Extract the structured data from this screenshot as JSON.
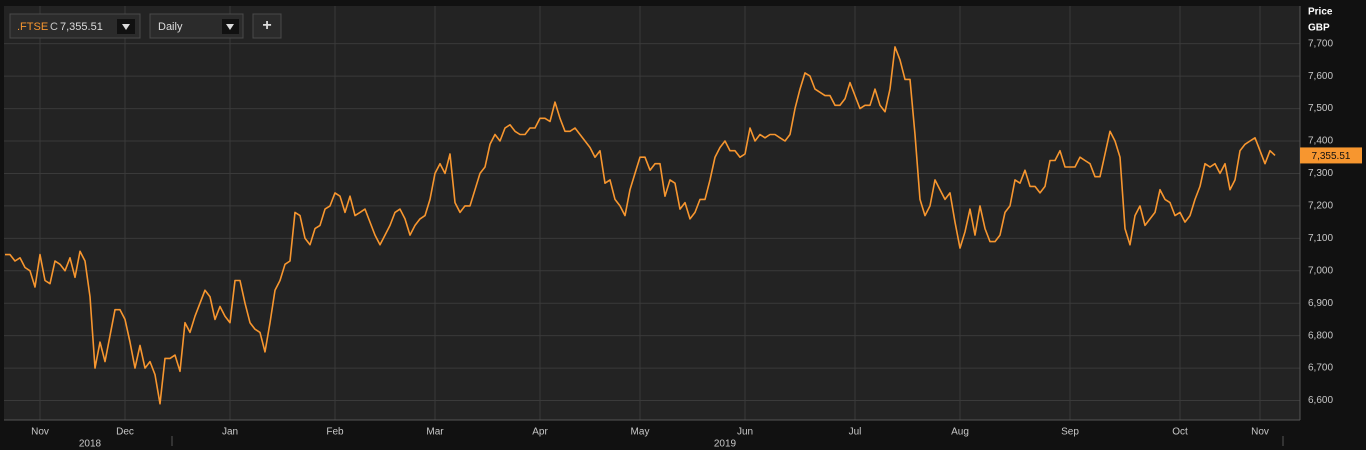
{
  "toolbar": {
    "instrument": ".FTSE",
    "close_prefix": "C",
    "close_label": "7,355.51",
    "interval": "Daily",
    "add_button": "+"
  },
  "chart_data": {
    "type": "line",
    "y_axis_title": [
      "Price",
      "GBP"
    ],
    "categories": [
      null,
      null,
      null,
      null,
      null,
      null,
      null,
      "Nov",
      null,
      null,
      null,
      null,
      null,
      null,
      null,
      null,
      null,
      null,
      null,
      null,
      null,
      null,
      null,
      null,
      "Dec",
      null,
      null,
      null,
      null,
      null,
      null,
      null,
      null,
      null,
      null,
      null,
      null,
      null,
      null,
      null,
      null,
      null,
      null,
      null,
      null,
      "Jan",
      null,
      null,
      null,
      null,
      null,
      null,
      null,
      null,
      null,
      null,
      null,
      null,
      null,
      null,
      null,
      null,
      null,
      null,
      null,
      null,
      "Feb",
      null,
      null,
      null,
      null,
      null,
      null,
      null,
      null,
      null,
      null,
      null,
      null,
      null,
      null,
      null,
      null,
      null,
      null,
      null,
      "Mar",
      null,
      null,
      null,
      null,
      null,
      null,
      null,
      null,
      null,
      null,
      null,
      null,
      null,
      null,
      null,
      null,
      null,
      null,
      null,
      null,
      "Apr",
      null,
      null,
      null,
      null,
      null,
      null,
      null,
      null,
      null,
      null,
      null,
      null,
      null,
      null,
      null,
      null,
      null,
      null,
      null,
      "May",
      null,
      null,
      null,
      null,
      null,
      null,
      null,
      null,
      null,
      null,
      null,
      null,
      null,
      null,
      null,
      null,
      null,
      null,
      null,
      null,
      "Jun",
      null,
      null,
      null,
      null,
      null,
      null,
      null,
      null,
      null,
      null,
      null,
      null,
      null,
      null,
      null,
      null,
      null,
      null,
      null,
      null,
      null,
      "Jul",
      null,
      null,
      null,
      null,
      null,
      null,
      null,
      null,
      null,
      null,
      null,
      null,
      null,
      null,
      null,
      null,
      null,
      null,
      null,
      null,
      "Aug",
      null,
      null,
      null,
      null,
      null,
      null,
      null,
      null,
      null,
      null,
      null,
      null,
      null,
      null,
      null,
      null,
      null,
      null,
      null,
      null,
      null,
      "Sep",
      null,
      null,
      null,
      null,
      null,
      null,
      null,
      null,
      null,
      null,
      null,
      null,
      null,
      null,
      null,
      null,
      null,
      null,
      null,
      null,
      null,
      "Oct",
      null,
      null,
      null,
      null,
      null,
      null,
      null,
      null,
      null,
      null,
      null,
      null,
      null,
      null,
      null,
      "Nov",
      null,
      null,
      null
    ],
    "year_categories": [
      null,
      null,
      null,
      null,
      null,
      null,
      null,
      null,
      null,
      null,
      null,
      null,
      null,
      null,
      null,
      null,
      null,
      "2018",
      null,
      null,
      null,
      null,
      null,
      null,
      null,
      null,
      null,
      null,
      null,
      null,
      null,
      null,
      null,
      null,
      null,
      null,
      null,
      null,
      null,
      null,
      null,
      null,
      null,
      null,
      null,
      null,
      null,
      null,
      null,
      null,
      null,
      null,
      null,
      null,
      null,
      null,
      null,
      null,
      null,
      null,
      null,
      null,
      null,
      null,
      null,
      null,
      null,
      null,
      null,
      null,
      null,
      null,
      null,
      null,
      null,
      null,
      null,
      null,
      null,
      null,
      null,
      null,
      null,
      null,
      null,
      null,
      null,
      null,
      null,
      null,
      null,
      null,
      null,
      null,
      null,
      null,
      null,
      null,
      null,
      null,
      null,
      null,
      null,
      null,
      null,
      null,
      null,
      null,
      null,
      null,
      null,
      null,
      null,
      null,
      null,
      null,
      null,
      null,
      null,
      null,
      null,
      null,
      null,
      null,
      null,
      null,
      null,
      null,
      null,
      null,
      null,
      null,
      null,
      null,
      null,
      null,
      null,
      null,
      null,
      null,
      null,
      null,
      null,
      null,
      "2019",
      null,
      null,
      null,
      null,
      null,
      null,
      null,
      null,
      null,
      null,
      null,
      null,
      null,
      null,
      null,
      null,
      null,
      null,
      null,
      null,
      null,
      null,
      null,
      null,
      null,
      null,
      null,
      null,
      null,
      null,
      null,
      null,
      null,
      null,
      null,
      null,
      null,
      null,
      null,
      null,
      null,
      null,
      null,
      null,
      null,
      null,
      null,
      null,
      null,
      null,
      null,
      null,
      null,
      null,
      null,
      null,
      null,
      null,
      null,
      null,
      null,
      null,
      null,
      null,
      null,
      null,
      null,
      null,
      null,
      null,
      null,
      null,
      null,
      null,
      null,
      null,
      null,
      null,
      null,
      null,
      null,
      null,
      null,
      null,
      null,
      null,
      null,
      null,
      null,
      null,
      null,
      null,
      null,
      null,
      null,
      null,
      null,
      null,
      null,
      null,
      null,
      null,
      null,
      null,
      null,
      null,
      null,
      null,
      null,
      null
    ],
    "series": [
      {
        "name": ".FTSE",
        "color": "#f7962f",
        "values": [
          7050,
          7050,
          7030,
          7040,
          7010,
          7000,
          6950,
          7050,
          6970,
          6960,
          7030,
          7020,
          7000,
          7040,
          6980,
          7060,
          7030,
          6920,
          6700,
          6780,
          6720,
          6800,
          6880,
          6880,
          6850,
          6780,
          6700,
          6770,
          6700,
          6720,
          6680,
          6590,
          6730,
          6730,
          6740,
          6690,
          6840,
          6810,
          6860,
          6900,
          6940,
          6920,
          6850,
          6890,
          6860,
          6840,
          6970,
          6970,
          6900,
          6840,
          6820,
          6810,
          6750,
          6840,
          6940,
          6970,
          7020,
          7030,
          7180,
          7170,
          7100,
          7080,
          7130,
          7140,
          7190,
          7200,
          7240,
          7230,
          7180,
          7230,
          7170,
          7180,
          7190,
          7150,
          7110,
          7080,
          7110,
          7140,
          7180,
          7190,
          7160,
          7110,
          7140,
          7160,
          7170,
          7220,
          7300,
          7330,
          7300,
          7360,
          7210,
          7180,
          7200,
          7200,
          7250,
          7300,
          7320,
          7390,
          7420,
          7400,
          7440,
          7450,
          7430,
          7420,
          7420,
          7440,
          7440,
          7470,
          7470,
          7460,
          7520,
          7470,
          7430,
          7430,
          7440,
          7420,
          7400,
          7380,
          7350,
          7370,
          7270,
          7280,
          7220,
          7200,
          7170,
          7250,
          7300,
          7350,
          7350,
          7310,
          7330,
          7330,
          7230,
          7280,
          7270,
          7190,
          7210,
          7160,
          7180,
          7220,
          7220,
          7280,
          7350,
          7380,
          7400,
          7370,
          7370,
          7350,
          7360,
          7440,
          7400,
          7420,
          7410,
          7420,
          7420,
          7410,
          7400,
          7420,
          7500,
          7560,
          7610,
          7600,
          7560,
          7550,
          7540,
          7540,
          7510,
          7510,
          7530,
          7580,
          7540,
          7500,
          7510,
          7510,
          7560,
          7510,
          7490,
          7560,
          7690,
          7650,
          7590,
          7590,
          7420,
          7220,
          7170,
          7200,
          7280,
          7250,
          7220,
          7240,
          7150,
          7070,
          7120,
          7190,
          7110,
          7200,
          7130,
          7090,
          7090,
          7110,
          7180,
          7200,
          7280,
          7270,
          7310,
          7260,
          7260,
          7240,
          7260,
          7340,
          7340,
          7370,
          7320,
          7320,
          7320,
          7350,
          7340,
          7330,
          7290,
          7290,
          7360,
          7430,
          7400,
          7350,
          7130,
          7080,
          7170,
          7200,
          7140,
          7160,
          7180,
          7250,
          7220,
          7210,
          7170,
          7180,
          7150,
          7170,
          7220,
          7260,
          7330,
          7320,
          7330,
          7300,
          7330,
          7250,
          7280,
          7370,
          7390,
          7400,
          7410,
          7370,
          7330,
          7370,
          7355.51
        ]
      }
    ],
    "last_label": "7,355.51",
    "ylim": [
      6540,
      7810
    ],
    "yticks": [
      {
        "value": 6600,
        "label": "6,600"
      },
      {
        "value": 6700,
        "label": "6,700"
      },
      {
        "value": 6800,
        "label": "6,800"
      },
      {
        "value": 6900,
        "label": "6,900"
      },
      {
        "value": 7000,
        "label": "7,000"
      },
      {
        "value": 7100,
        "label": "7,100"
      },
      {
        "value": 7200,
        "label": "7,200"
      },
      {
        "value": 7300,
        "label": "7,300"
      },
      {
        "value": 7400,
        "label": "7,400"
      },
      {
        "value": 7500,
        "label": "7,500"
      },
      {
        "value": 7600,
        "label": "7,600"
      },
      {
        "value": 7700,
        "label": "7,700"
      }
    ],
    "grid": true
  }
}
